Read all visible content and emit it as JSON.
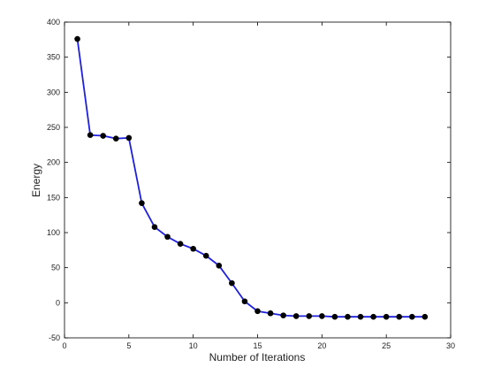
{
  "chart_data": {
    "type": "line",
    "x_label": "Number of Iterations",
    "y_label": "Energy",
    "x": [
      1,
      2,
      3,
      4,
      5,
      6,
      7,
      8,
      9,
      10,
      11,
      12,
      13,
      14,
      15,
      16,
      17,
      18,
      19,
      20,
      21,
      22,
      23,
      24,
      25,
      26,
      27,
      28
    ],
    "values": [
      376,
      239,
      238,
      234,
      235,
      142,
      108,
      94,
      84,
      77,
      67,
      53,
      28,
      2,
      -12,
      -15,
      -18,
      -19,
      -19,
      -19,
      -20,
      -20,
      -20,
      -20,
      -20,
      -20,
      -20,
      -20
    ],
    "color": "#1f1fe0",
    "marker_color": "#000000",
    "xlim": [
      0,
      30
    ],
    "xticks": [
      0,
      5,
      10,
      15,
      20,
      25,
      30
    ],
    "ylim": [
      -50,
      400
    ],
    "yticks": [
      -50,
      0,
      50,
      100,
      150,
      200,
      250,
      300,
      350,
      400
    ]
  }
}
